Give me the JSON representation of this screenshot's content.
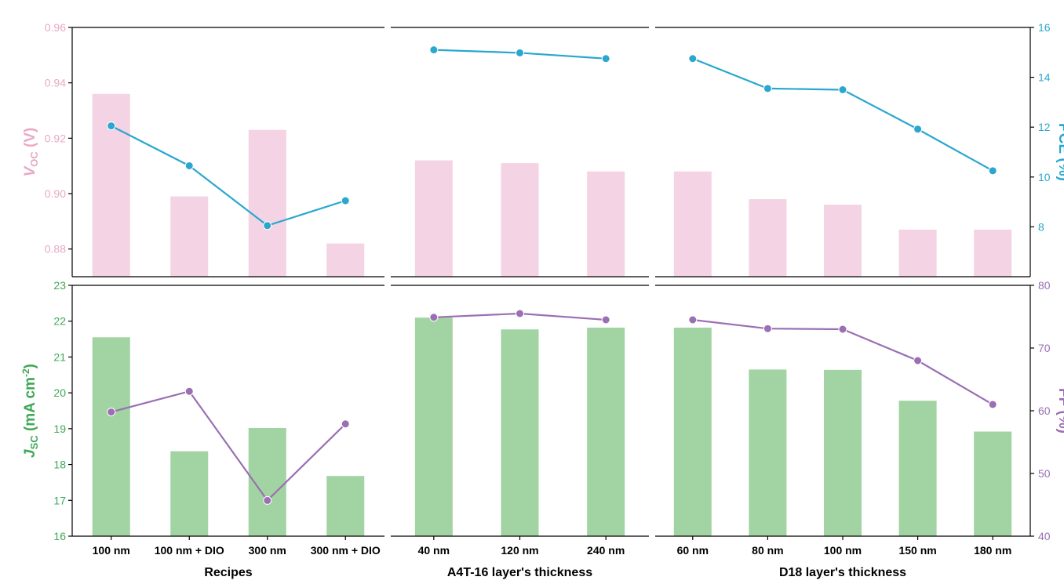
{
  "chart_data": {
    "type": "bar",
    "groups": [
      {
        "label": "Recipes",
        "categories": [
          "100 nm",
          "100 nm + DIO",
          "300 nm",
          "300 nm + DIO"
        ]
      },
      {
        "label": "A4T-16 layer's thickness",
        "categories": [
          "40 nm",
          "120 nm",
          "240 nm"
        ]
      },
      {
        "label": "D18 layer's thickness",
        "categories": [
          "60 nm",
          "80 nm",
          "100 nm",
          "150 nm",
          "180 nm"
        ]
      }
    ],
    "top_panel": {
      "left_axis": {
        "label_main": "V",
        "label_sub": "OC",
        "label_unit": " (V)",
        "ylim": [
          0.87,
          0.96
        ],
        "ticks": [
          "0.88",
          "0.90",
          "0.92",
          "0.94",
          "0.96"
        ],
        "color": "#e8a9c4"
      },
      "right_axis": {
        "label": "PCE (%)",
        "ylim": [
          6,
          16
        ],
        "ticks": [
          "8",
          "10",
          "12",
          "14",
          "16"
        ],
        "color": "#2aa7cf"
      },
      "bars": {
        "axis": "left",
        "color": "#f3d3e4",
        "values": [
          0.936,
          0.899,
          0.923,
          0.882,
          0.912,
          0.911,
          0.908,
          0.908,
          0.898,
          0.896,
          0.887,
          0.887
        ]
      },
      "line": {
        "axis": "right",
        "color": "#2aa7cf",
        "values": [
          12.05,
          10.45,
          8.05,
          9.05,
          15.1,
          14.98,
          14.75,
          14.75,
          13.55,
          13.5,
          11.92,
          10.25
        ]
      }
    },
    "bottom_panel": {
      "left_axis": {
        "label_main": "J",
        "label_sub": "SC",
        "label_unit": " (mA cm",
        "label_sup": "-2",
        "label_end": ")",
        "ylim": [
          16,
          23
        ],
        "ticks": [
          "16",
          "17",
          "18",
          "19",
          "20",
          "21",
          "22",
          "23"
        ],
        "color": "#3fa857"
      },
      "right_axis": {
        "label": "FF (%)",
        "ylim": [
          40,
          80
        ],
        "ticks": [
          "40",
          "50",
          "60",
          "70",
          "80"
        ],
        "color": "#9b6fb3"
      },
      "bars": {
        "axis": "left",
        "color": "#a2d3a2",
        "values": [
          21.55,
          18.37,
          19.02,
          17.68,
          22.1,
          21.77,
          21.82,
          21.82,
          20.65,
          20.64,
          19.78,
          18.92
        ]
      },
      "line": {
        "axis": "right",
        "color": "#9b6fb3",
        "values": [
          59.8,
          63.1,
          45.7,
          57.9,
          74.9,
          75.5,
          74.5,
          74.5,
          73.1,
          73.0,
          68.0,
          61.0
        ]
      }
    }
  }
}
